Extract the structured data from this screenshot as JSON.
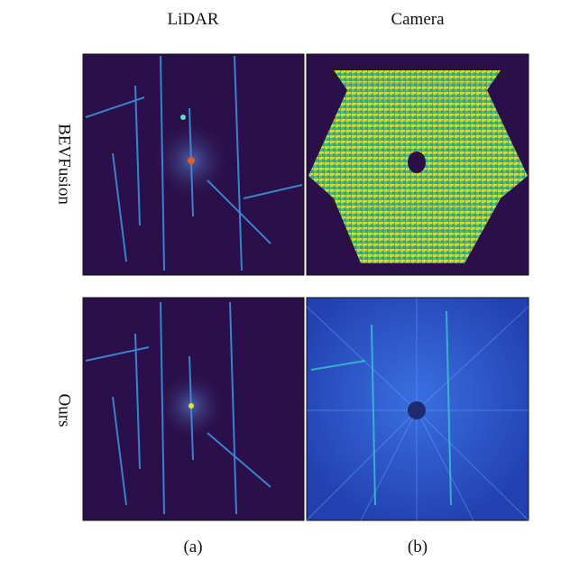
{
  "columns": [
    "LiDAR",
    "Camera"
  ],
  "rows": [
    "BEVFusion",
    "Ours"
  ],
  "captions": [
    "(a)",
    "(b)"
  ]
}
